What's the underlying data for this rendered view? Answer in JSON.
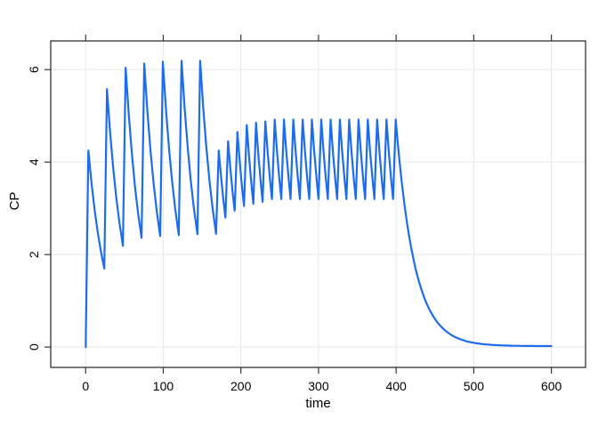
{
  "chart_data": {
    "type": "line",
    "title": "",
    "xlabel": "time",
    "ylabel": "CP",
    "x_ticks": [
      0,
      100,
      200,
      300,
      400,
      500,
      600
    ],
    "y_ticks": [
      0,
      2,
      4,
      6
    ],
    "xlim": [
      -45,
      644
    ],
    "ylim": [
      -0.44,
      6.62
    ],
    "grid": true,
    "legend": "none",
    "colors": {
      "line": "#1d6cec",
      "frame": "#333333",
      "grid": "#e8e8e8",
      "text": "#000000",
      "background": "#ffffff"
    },
    "series_name": "CP",
    "model": {
      "start_t": 0,
      "start_v": 0,
      "rise_time": 3.5,
      "phase1": {
        "dose_times": [
          0,
          24,
          48,
          72,
          96,
          120,
          144
        ],
        "peaks": [
          4.25,
          5.58,
          6.04,
          6.13,
          6.17,
          6.19,
          6.19
        ],
        "troughs": [
          1.7,
          2.19,
          2.36,
          2.4,
          2.42,
          2.44,
          2.45
        ],
        "end": 168
      },
      "phase2": {
        "start": 168,
        "interval": 12,
        "n_doses": 20,
        "peaks": [
          4.25,
          4.45,
          4.65,
          4.8,
          4.85,
          4.88
        ],
        "peak_plateau": 4.92,
        "troughs": [
          2.8,
          2.95,
          3.05,
          3.1,
          3.14
        ],
        "trough_plateau": 3.2
      },
      "washout": {
        "start_time": 399.5,
        "start_value": 4.92,
        "ke": 0.042,
        "floor": 0.02,
        "end_time": 600
      }
    }
  }
}
